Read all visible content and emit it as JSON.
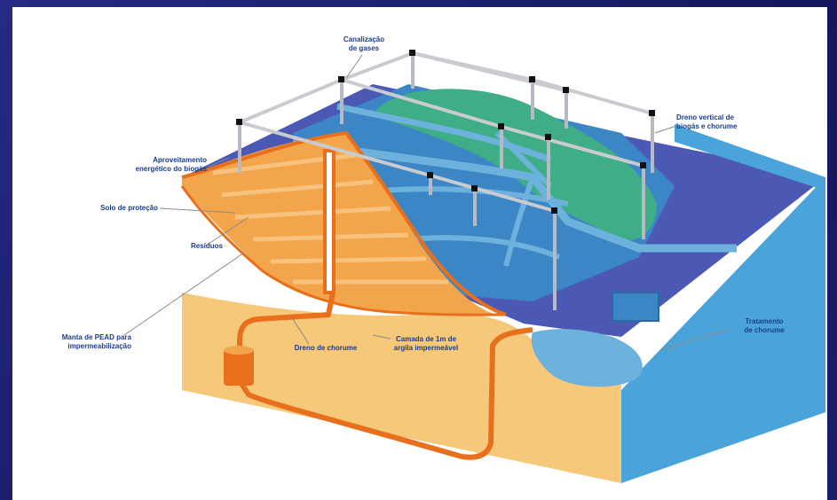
{
  "labels": {
    "canalizacao": "Canalização\nde gases",
    "dreno_vertical": "Dreno vertical de\nbiogás e chorume",
    "aproveitamento": "Aproveitamento\nenergético do biogás",
    "solo": "Solo de proteção",
    "residuos": "Resíduos",
    "manta": "Manta de PEAD para\nimpermeabilização",
    "dreno_chorume": "Dreno de chorume",
    "camada": "Camada de 1m de\nargila impermeável",
    "tratamento": "Tratamento\nde chorume"
  },
  "colors": {
    "background": "#1c1f6e",
    "panel": "#ffffff",
    "sand": "#f6c87a",
    "waste": "#f2a54a",
    "waste_stripe": "#f7c27d",
    "pipe": "#e8701d",
    "water_light": "#6cb2dc",
    "water_mid": "#3d86c6",
    "water_dark": "#4b59b4",
    "green_mound": "#3fae86",
    "label_text": "#1a3d8f",
    "gas_pipe": "#c9cbd1"
  }
}
